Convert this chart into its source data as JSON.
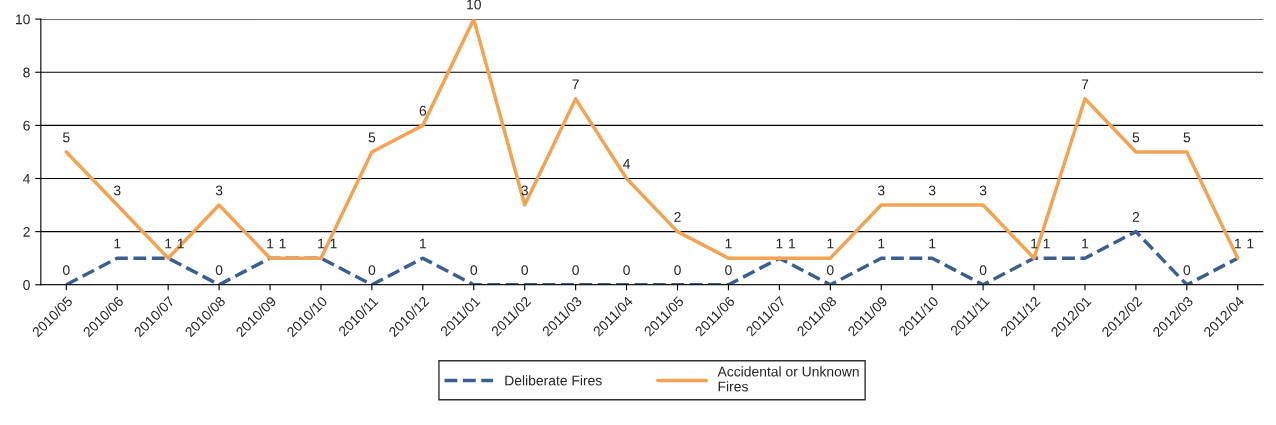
{
  "chart_data": {
    "type": "line",
    "categories": [
      "2010/05",
      "2010/06",
      "2010/07",
      "2010/08",
      "2010/09",
      "2010/10",
      "2010/11",
      "2010/12",
      "2011/01",
      "2011/02",
      "2011/03",
      "2011/04",
      "2011/05",
      "2011/06",
      "2011/07",
      "2011/08",
      "2011/09",
      "2011/10",
      "2011/11",
      "2011/12",
      "2012/01",
      "2012/02",
      "2012/03",
      "2012/04"
    ],
    "series": [
      {
        "name": "Deliberate Fires",
        "color": "#3b5f8f",
        "line_style": "dashed",
        "values": [
          0,
          1,
          1,
          0,
          1,
          1,
          0,
          1,
          0,
          0,
          0,
          0,
          0,
          0,
          1,
          0,
          1,
          1,
          0,
          1,
          1,
          2,
          0,
          1
        ]
      },
      {
        "name": "Accidental or Unknown Fires",
        "color": "#f3a354",
        "line_style": "solid",
        "values": [
          5,
          3,
          1,
          3,
          1,
          1,
          5,
          6,
          10,
          3,
          7,
          4,
          2,
          1,
          1,
          1,
          3,
          3,
          3,
          1,
          7,
          5,
          5,
          1
        ]
      }
    ],
    "ylim": [
      0,
      10
    ],
    "yticks": [
      0,
      2,
      4,
      6,
      8,
      10
    ],
    "grid": "y",
    "legend": "bottom",
    "data_labels": true,
    "marker": "none"
  }
}
